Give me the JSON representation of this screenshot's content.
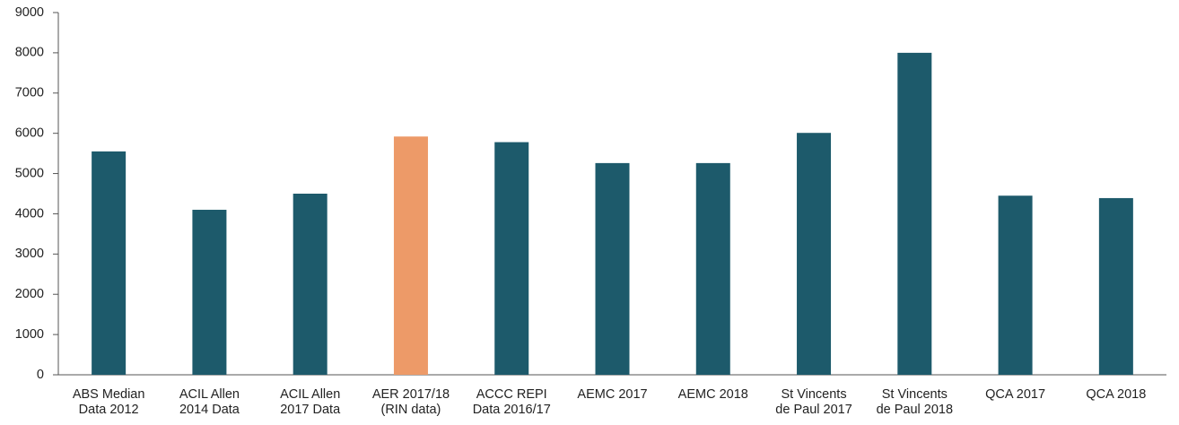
{
  "chart_data": {
    "type": "bar",
    "categories": [
      "ABS Median\nData 2012",
      "ACIL Allen\n2014 Data",
      "ACIL Allen\n2017 Data",
      "AER 2017/18\n(RIN data)",
      "ACCC REPI\nData 2016/17",
      "AEMC 2017",
      "AEMC 2018",
      "St Vincents\nde Paul 2017",
      "St Vincents\nde Paul 2018",
      "QCA 2017",
      "QCA 2018"
    ],
    "values": [
      5550,
      4100,
      4500,
      5920,
      5780,
      5260,
      5260,
      6010,
      8000,
      4450,
      4390
    ],
    "colors": [
      "#1d5a6b",
      "#1d5a6b",
      "#1d5a6b",
      "#ed9a68",
      "#1d5a6b",
      "#1d5a6b",
      "#1d5a6b",
      "#1d5a6b",
      "#1d5a6b",
      "#1d5a6b",
      "#1d5a6b"
    ],
    "ylim": [
      0,
      9000
    ],
    "yticks": [
      0,
      1000,
      2000,
      3000,
      4000,
      5000,
      6000,
      7000,
      8000,
      9000
    ],
    "grid": false
  }
}
